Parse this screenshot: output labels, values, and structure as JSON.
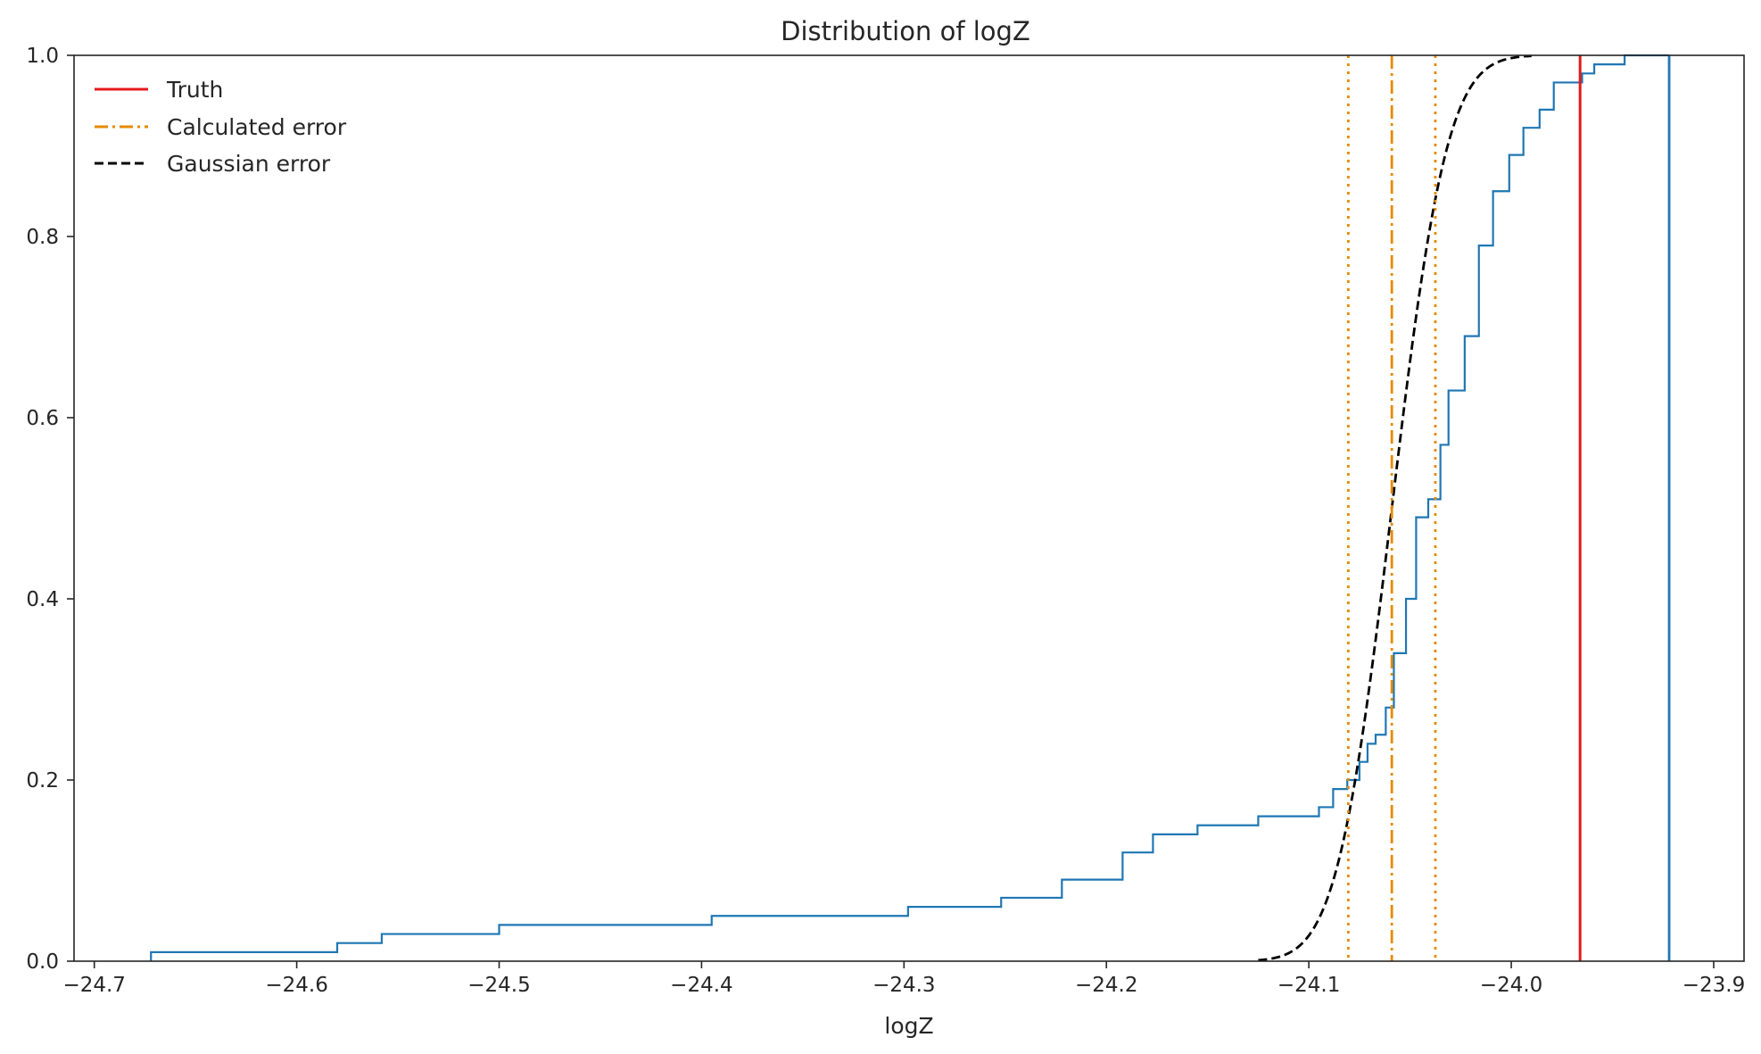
{
  "chart_data": {
    "type": "line",
    "title": "Distribution of logZ",
    "xlabel": "logZ",
    "ylabel": "",
    "xlim": [
      -24.71,
      -23.885
    ],
    "ylim": [
      0.0,
      1.0
    ],
    "xticks": [
      -24.7,
      -24.6,
      -24.5,
      -24.4,
      -24.3,
      -24.2,
      -24.1,
      -24.0,
      -23.9
    ],
    "xtick_labels": [
      "−24.7",
      "−24.6",
      "−24.5",
      "−24.4",
      "−24.3",
      "−24.2",
      "−24.1",
      "−24.0",
      "−23.9"
    ],
    "yticks": [
      0.0,
      0.2,
      0.4,
      0.6,
      0.8,
      1.0
    ],
    "ytick_labels": [
      "0.0",
      "0.2",
      "0.4",
      "0.6",
      "0.8",
      "1.0"
    ],
    "grid": false,
    "legend_position": "top-left",
    "legend": [
      {
        "label": "Truth",
        "color": "#e41a1c",
        "style": "solid"
      },
      {
        "label": "Calculated error",
        "color": "#e68a00",
        "style": "dashdot"
      },
      {
        "label": "Gaussian error",
        "color": "#000000",
        "style": "dashed"
      }
    ],
    "series": [
      {
        "kind": "ecdf-step",
        "color": "#1f77b4",
        "x": [
          -24.672,
          -24.58,
          -24.558,
          -24.5,
          -24.395,
          -24.298,
          -24.252,
          -24.222,
          -24.192,
          -24.177,
          -24.155,
          -24.125,
          -24.095,
          -24.088,
          -24.081,
          -24.075,
          -24.071,
          -24.067,
          -24.062,
          -24.058,
          -24.052,
          -24.047,
          -24.041,
          -24.035,
          -24.031,
          -24.023,
          -24.016,
          -24.009,
          -24.001,
          -23.994,
          -23.986,
          -23.979,
          -23.974,
          -23.965,
          -23.959,
          -23.944,
          -23.938,
          -23.931,
          -23.922
        ],
        "y": [
          0.01,
          0.02,
          0.03,
          0.04,
          0.05,
          0.06,
          0.07,
          0.09,
          0.12,
          0.14,
          0.15,
          0.16,
          0.17,
          0.19,
          0.2,
          0.22,
          0.24,
          0.25,
          0.28,
          0.34,
          0.4,
          0.49,
          0.51,
          0.57,
          0.63,
          0.69,
          0.79,
          0.85,
          0.89,
          0.92,
          0.94,
          0.97,
          0.97,
          0.98,
          0.99,
          1.0,
          1.0,
          1.0,
          1.0
        ]
      },
      {
        "kind": "normal-cdf",
        "color": "#000000",
        "style": "dashed",
        "mean": -24.059,
        "sd": 0.0215,
        "x_range": [
          -24.125,
          -23.99
        ]
      }
    ],
    "vlines": [
      {
        "x": -23.966,
        "color": "#e41a1c",
        "style": "solid"
      },
      {
        "x": -24.059,
        "color": "#e68a00",
        "style": "dashdot"
      },
      {
        "x": -24.0805,
        "color": "#e68a00",
        "style": "dotted"
      },
      {
        "x": -24.0375,
        "color": "#e68a00",
        "style": "dotted"
      },
      {
        "x": -23.922,
        "color": "#1f77b4",
        "style": "solid"
      }
    ]
  }
}
